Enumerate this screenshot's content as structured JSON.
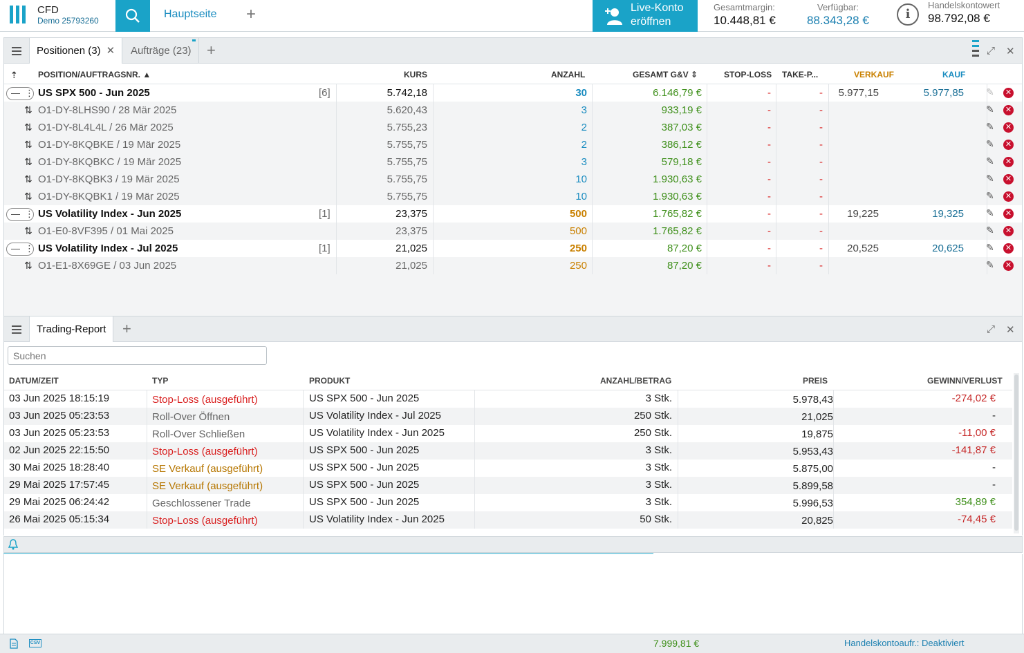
{
  "app": {
    "title": "CFD",
    "account": "Demo 25793260",
    "home": "Hauptseite",
    "live_btn": [
      "Live-Konto",
      "eröffnen"
    ]
  },
  "stats": [
    {
      "label": "Gesamtmargin:",
      "value": "10.448,81 €"
    },
    {
      "label": "Verfügbar:",
      "value": "88.343,28 €"
    },
    {
      "label": "Handelskontowert",
      "value": "98.792,08 €"
    }
  ],
  "positions_panel": {
    "tabs": [
      "Positionen (3)",
      "Aufträge (23)"
    ],
    "headers": {
      "position": "POSITION/AUFTRAGSNR.",
      "kurs": "KURS",
      "anzahl": "ANZAHL",
      "gv": "GESAMT G&V",
      "sl": "STOP-LOSS",
      "tp": "TAKE-P...",
      "verkauf": "VERKAUF",
      "kauf": "KAUF"
    },
    "rows": [
      {
        "type": "parent",
        "name": "US SPX 500 - Jun 2025",
        "count": "[6]",
        "kurs": "5.742,18",
        "anzahl": "30",
        "anz_color": "cyan",
        "gv": "6.146,79 €",
        "sl": "-",
        "tp": "-",
        "verkauf": "5.977,15",
        "kauf": "5.977,85"
      },
      {
        "type": "child",
        "name": "O1-DY-8LHS90 / 28 Mär 2025",
        "kurs": "5.620,43",
        "anzahl": "3",
        "anz_color": "cyan",
        "gv": "933,19 €",
        "sl": "-",
        "tp": "-"
      },
      {
        "type": "child",
        "name": "O1-DY-8L4L4L / 26 Mär 2025",
        "kurs": "5.755,23",
        "anzahl": "2",
        "anz_color": "cyan",
        "gv": "387,03 €",
        "sl": "-",
        "tp": "-"
      },
      {
        "type": "child",
        "name": "O1-DY-8KQBKE / 19 Mär 2025",
        "kurs": "5.755,75",
        "anzahl": "2",
        "anz_color": "cyan",
        "gv": "386,12 €",
        "sl": "-",
        "tp": "-"
      },
      {
        "type": "child",
        "name": "O1-DY-8KQBKC / 19 Mär 2025",
        "kurs": "5.755,75",
        "anzahl": "3",
        "anz_color": "cyan",
        "gv": "579,18 €",
        "sl": "-",
        "tp": "-"
      },
      {
        "type": "child",
        "name": "O1-DY-8KQBK3 / 19 Mär 2025",
        "kurs": "5.755,75",
        "anzahl": "10",
        "anz_color": "cyan",
        "gv": "1.930,63 €",
        "sl": "-",
        "tp": "-"
      },
      {
        "type": "child",
        "name": "O1-DY-8KQBK1 / 19 Mär 2025",
        "kurs": "5.755,75",
        "anzahl": "10",
        "anz_color": "cyan",
        "gv": "1.930,63 €",
        "sl": "-",
        "tp": "-"
      },
      {
        "type": "parent",
        "name": "US Volatility Index - Jun 2025",
        "count": "[1]",
        "kurs": "23,375",
        "anzahl": "500",
        "anz_color": "orange",
        "gv": "1.765,82 €",
        "sl": "-",
        "tp": "-",
        "verkauf": "19,225",
        "kauf": "19,325"
      },
      {
        "type": "child",
        "name": "O1-E0-8VF395 / 01 Mai 2025",
        "kurs": "23,375",
        "anzahl": "500",
        "anz_color": "orange",
        "gv": "1.765,82 €",
        "sl": "-",
        "tp": "-"
      },
      {
        "type": "parent",
        "name": "US Volatility Index - Jul 2025",
        "count": "[1]",
        "kurs": "21,025",
        "anzahl": "250",
        "anz_color": "orange",
        "gv": "87,20 €",
        "sl": "-",
        "tp": "-",
        "verkauf": "20,525",
        "kauf": "20,625"
      },
      {
        "type": "child",
        "name": "O1-E1-8X69GE / 03 Jun 2025",
        "kurs": "21,025",
        "anzahl": "250",
        "anz_color": "orange",
        "gv": "87,20 €",
        "sl": "-",
        "tp": "-"
      }
    ]
  },
  "report_panel": {
    "tab": "Trading-Report",
    "search_placeholder": "Suchen",
    "headers": {
      "datum": "DATUM/ZEIT",
      "typ": "TYP",
      "produkt": "PRODUKT",
      "anzahl": "ANZAHL/BETRAG",
      "preis": "PREIS",
      "gv": "GEWINN/VERLUST"
    },
    "rows": [
      {
        "datum": "03 Jun 2025 18:15:19",
        "typ": "Stop-Loss (ausgeführt)",
        "typ_color": "red",
        "produkt": "US SPX 500 - Jun 2025",
        "anzahl": "3 Stk.",
        "preis": "5.978,43",
        "gv": "-274,02 €",
        "gv_color": "dkred"
      },
      {
        "datum": "03 Jun 2025 05:23:53",
        "typ": "Roll-Over Öffnen",
        "typ_color": "gray",
        "produkt": "US Volatility Index - Jul 2025",
        "anzahl": "250 Stk.",
        "preis": "21,025",
        "gv": "-",
        "gv_color": "plain"
      },
      {
        "datum": "03 Jun 2025 05:23:53",
        "typ": "Roll-Over Schließen",
        "typ_color": "gray",
        "produkt": "US Volatility Index - Jun 2025",
        "anzahl": "250 Stk.",
        "preis": "19,875",
        "gv": "-11,00 €",
        "gv_color": "dkred"
      },
      {
        "datum": "02 Jun 2025 22:15:50",
        "typ": "Stop-Loss (ausgeführt)",
        "typ_color": "red",
        "produkt": "US SPX 500 - Jun 2025",
        "anzahl": "3 Stk.",
        "preis": "5.953,43",
        "gv": "-141,87 €",
        "gv_color": "dkred"
      },
      {
        "datum": "30 Mai 2025 18:28:40",
        "typ": "SE Verkauf (ausgeführt)",
        "typ_color": "gold",
        "produkt": "US SPX 500 - Jun 2025",
        "anzahl": "3 Stk.",
        "preis": "5.875,00",
        "gv": "-",
        "gv_color": "plain"
      },
      {
        "datum": "29 Mai 2025 17:57:45",
        "typ": "SE Verkauf (ausgeführt)",
        "typ_color": "gold",
        "produkt": "US SPX 500 - Jun 2025",
        "anzahl": "3 Stk.",
        "preis": "5.899,58",
        "gv": "-",
        "gv_color": "plain"
      },
      {
        "datum": "29 Mai 2025 06:24:42",
        "typ": "Geschlossener Trade",
        "typ_color": "gray",
        "produkt": "US SPX 500 - Jun 2025",
        "anzahl": "3 Stk.",
        "preis": "5.996,53",
        "gv": "354,89 €",
        "gv_color": "green"
      },
      {
        "datum": "26 Mai 2025 05:15:34",
        "typ": "Stop-Loss (ausgeführt)",
        "typ_color": "red",
        "produkt": "US Volatility Index - Jun 2025",
        "anzahl": "50 Stk.",
        "preis": "20,825",
        "gv": "-74,45 €",
        "gv_color": "dkred"
      }
    ]
  },
  "status": {
    "total": "7.999,81 €",
    "account_status": "Handelskontoaufr.: Deaktiviert"
  }
}
